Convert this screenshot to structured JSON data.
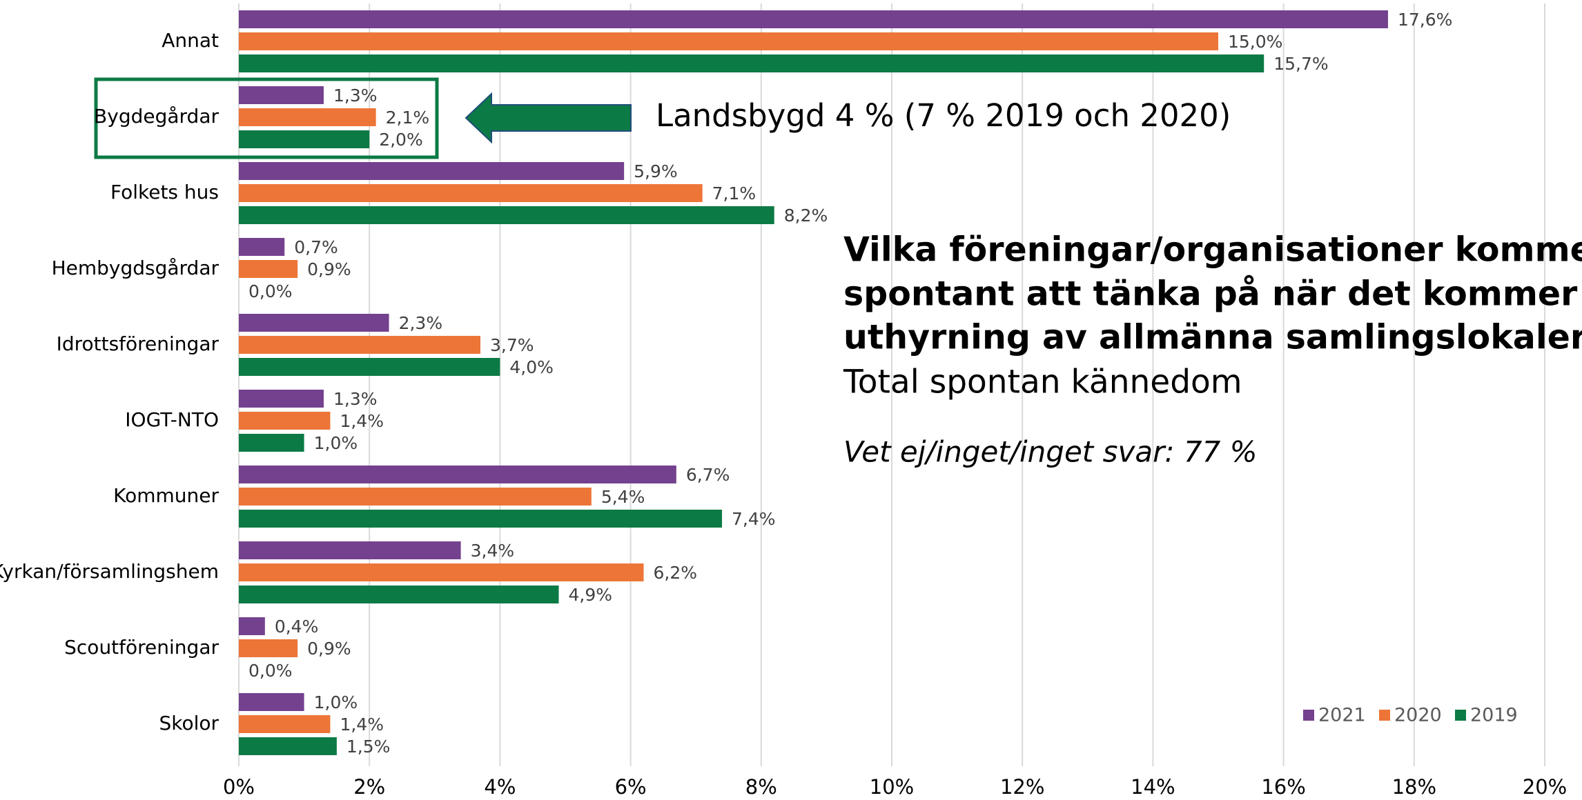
{
  "chart_data": {
    "type": "bar",
    "orientation": "horizontal",
    "title_lines": [
      "Vilka föreningar/organisationer kommer",
      "spontant att tänka på när det kommer till",
      "uthyrning av allmänna samlingslokaler?"
    ],
    "subtitle": "Total spontan kännedom",
    "note": "Vet ej/inget/inget svar: 77 %",
    "annotation": "Landsbygd 4 % (7 % 2019 och 2020)",
    "categories": [
      "Annat",
      "Bygdegårdar",
      "Folkets hus",
      "Hembygdsgårdar",
      "Idrottsföreningar",
      "IOGT-NTO",
      "Kommuner",
      "Kyrkan/församlingshem",
      "Scoutföreningar",
      "Skolor"
    ],
    "series": [
      {
        "name": "2021",
        "color": "#74418f",
        "values": [
          17.6,
          1.3,
          5.9,
          0.7,
          2.3,
          1.3,
          6.7,
          3.4,
          0.4,
          1.0
        ],
        "value_labels": [
          "17,6%",
          "1,3%",
          "5,9%",
          "0,7%",
          "2,3%",
          "1,3%",
          "6,7%",
          "3,4%",
          "0,4%",
          "1,0%"
        ]
      },
      {
        "name": "2020",
        "color": "#ed7537",
        "values": [
          15.0,
          2.1,
          7.1,
          0.9,
          3.7,
          1.4,
          5.4,
          6.2,
          0.9,
          1.4
        ],
        "value_labels": [
          "15,0%",
          "2,1%",
          "7,1%",
          "0,9%",
          "3,7%",
          "1,4%",
          "5,4%",
          "6,2%",
          "0,9%",
          "1,4%"
        ]
      },
      {
        "name": "2019",
        "color": "#0c7a45",
        "values": [
          15.7,
          2.0,
          8.2,
          0.0,
          4.0,
          1.0,
          7.4,
          4.9,
          0.0,
          1.5
        ],
        "value_labels": [
          "15,7%",
          "2,0%",
          "8,2%",
          "0,0%",
          "4,0%",
          "1,0%",
          "7,4%",
          "4,9%",
          "0,0%",
          "1,5%"
        ]
      }
    ],
    "xlim": [
      0,
      20
    ],
    "xticks": [
      {
        "value": 0,
        "label": "0%"
      },
      {
        "value": 2,
        "label": "2%"
      },
      {
        "value": 4,
        "label": "4%"
      },
      {
        "value": 6,
        "label": "6%"
      },
      {
        "value": 8,
        "label": "8%"
      },
      {
        "value": 10,
        "label": "10%"
      },
      {
        "value": 12,
        "label": "12%"
      },
      {
        "value": 14,
        "label": "14%"
      },
      {
        "value": 16,
        "label": "16%"
      },
      {
        "value": 18,
        "label": "18%"
      },
      {
        "value": 20,
        "label": "20%"
      }
    ],
    "grid": true,
    "legend": "bottom-right"
  }
}
